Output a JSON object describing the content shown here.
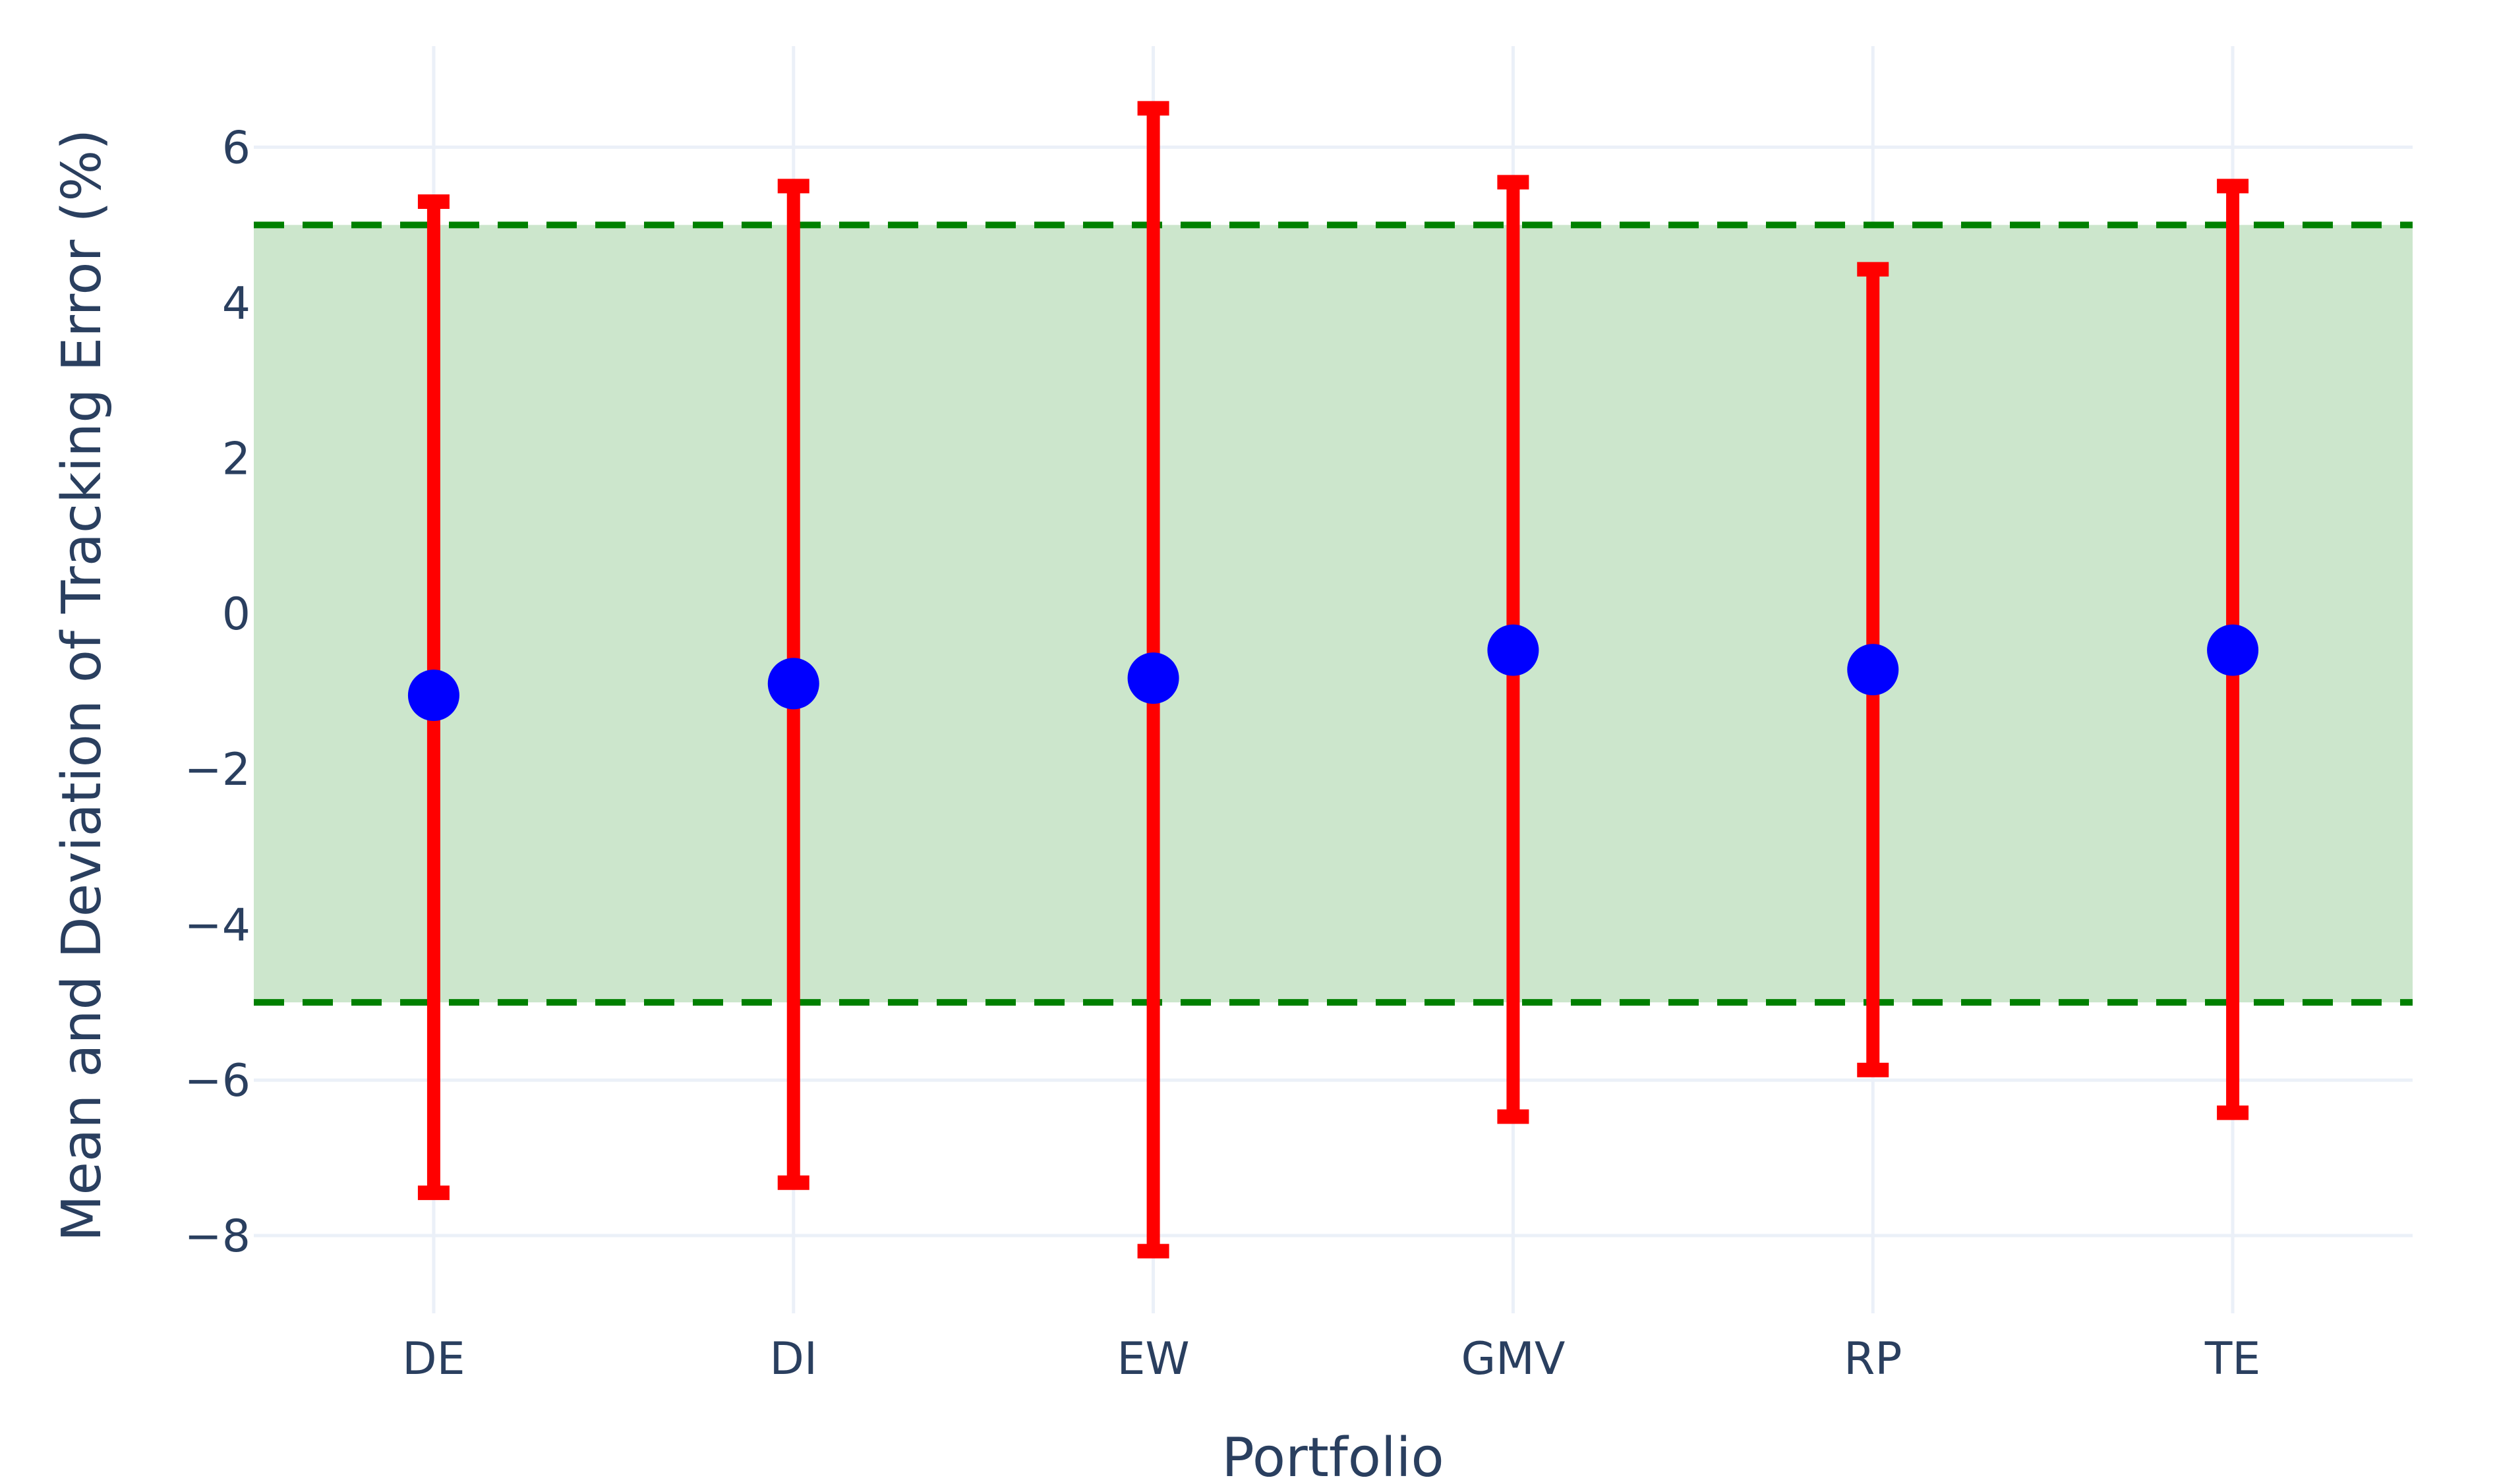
{
  "chart_data": {
    "type": "scatter",
    "categories": [
      "DE",
      "DI",
      "EW",
      "GMV",
      "RP",
      "TE"
    ],
    "series": [
      {
        "means": [
          -1.05,
          -0.9,
          -0.83,
          -0.47,
          -0.72,
          -0.47
        ],
        "error_low": [
          -7.45,
          -7.32,
          -8.2,
          -6.47,
          -5.87,
          -6.42
        ],
        "error_high": [
          5.3,
          5.5,
          6.5,
          5.55,
          4.43,
          5.5
        ],
        "marker_color": "#0000ff",
        "error_color": "#ff0000"
      }
    ],
    "band": {
      "low": -5,
      "high": 5,
      "fill_color": "#cce6cc",
      "line_color": "#008000",
      "line_style": "dashed"
    },
    "xlabel": "Portfolio",
    "ylabel": "Mean and Deviation of Tracking Error (%)",
    "ylim": [
      -9,
      7.3
    ],
    "yticks": [
      6,
      4,
      2,
      0,
      -2,
      -4,
      -6,
      -8
    ],
    "ytick_labels": [
      "6",
      "4",
      "2",
      "0",
      "−2",
      "−4",
      "−6",
      "−8"
    ],
    "grid": true,
    "legend": "none"
  }
}
